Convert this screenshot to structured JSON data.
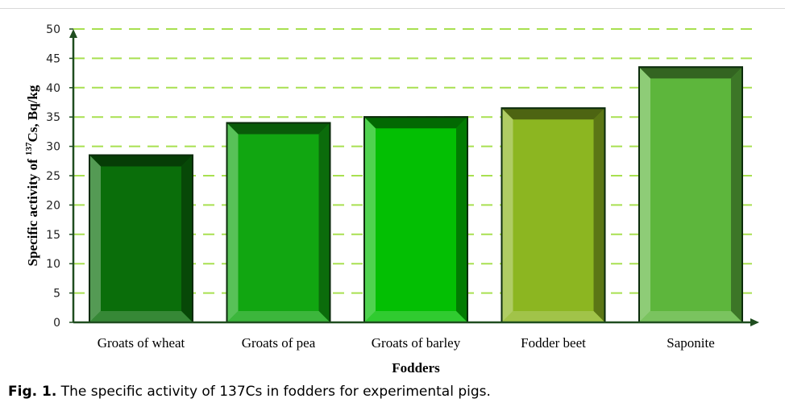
{
  "chart_data": {
    "type": "bar",
    "categories": [
      "Groats of wheat",
      "Groats of pea",
      "Groats of barley",
      "Fodder beet",
      "Saponite"
    ],
    "values": [
      28.5,
      34,
      35,
      36.5,
      43.5
    ],
    "xlabel": "Fodders",
    "ylabel_prefix": "Specific activity of ",
    "ylabel_sup": "137",
    "ylabel_suffix": "Cs, Bq/kg",
    "ylim": [
      0,
      50
    ],
    "yticks": [
      0,
      5,
      10,
      15,
      20,
      25,
      30,
      35,
      40,
      45,
      50
    ],
    "grid": true,
    "grid_color": "#a8e050",
    "bar_colors": [
      "#0a6e0a",
      "#11a611",
      "#03bf03",
      "#8cb621",
      "#5db63c"
    ]
  },
  "caption": {
    "label": "Fig. 1.",
    "text": " The specific activity of 137Cs in fodders for experimental pigs."
  }
}
